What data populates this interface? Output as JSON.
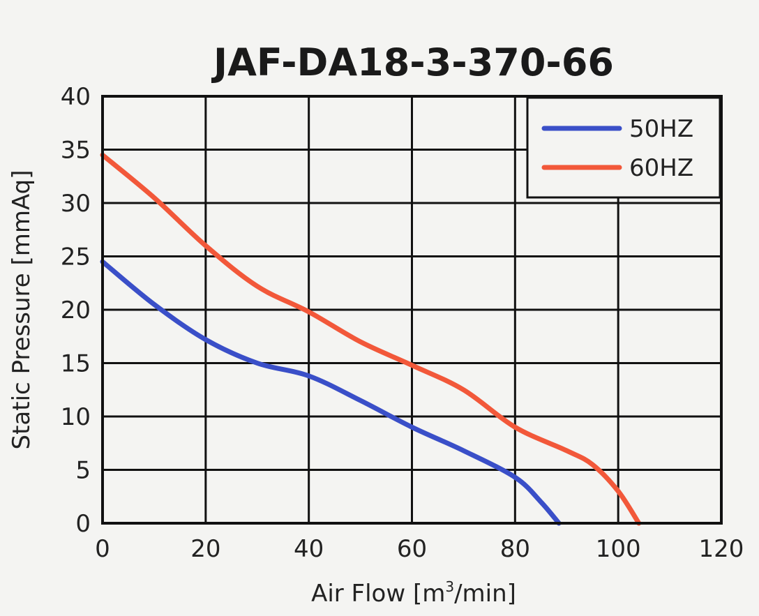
{
  "chart_data": {
    "type": "line",
    "title": "JAF-DA18-3-370-66",
    "xlabel_main": "Air Flow [m",
    "xlabel_sup": "3",
    "xlabel_end": "/min]",
    "ylabel": "Static Pressure [mmAq]",
    "xlim": [
      0,
      120
    ],
    "ylim": [
      0,
      40
    ],
    "x_ticks": [
      "0",
      "20",
      "40",
      "60",
      "80",
      "100",
      "120"
    ],
    "y_ticks": [
      "0",
      "5",
      "10",
      "15",
      "20",
      "25",
      "30",
      "35",
      "40"
    ],
    "grid": true,
    "legend_position": "top-right",
    "series": [
      {
        "name": "50HZ",
        "color": "#3a4fc8",
        "points": [
          [
            0,
            24.5
          ],
          [
            10,
            20.5
          ],
          [
            20,
            17.2
          ],
          [
            30,
            15.0
          ],
          [
            40,
            13.8
          ],
          [
            50,
            11.5
          ],
          [
            60,
            9.0
          ],
          [
            70,
            6.8
          ],
          [
            80,
            4.3
          ],
          [
            85,
            2.0
          ],
          [
            88.5,
            0
          ]
        ]
      },
      {
        "name": "60HZ",
        "color": "#f2583a",
        "points": [
          [
            0,
            34.5
          ],
          [
            10,
            30.5
          ],
          [
            20,
            26.0
          ],
          [
            30,
            22.2
          ],
          [
            40,
            19.8
          ],
          [
            50,
            17.0
          ],
          [
            60,
            14.8
          ],
          [
            70,
            12.5
          ],
          [
            80,
            9.0
          ],
          [
            90,
            6.8
          ],
          [
            95,
            5.5
          ],
          [
            100,
            3.0
          ],
          [
            104,
            0
          ]
        ]
      }
    ]
  }
}
